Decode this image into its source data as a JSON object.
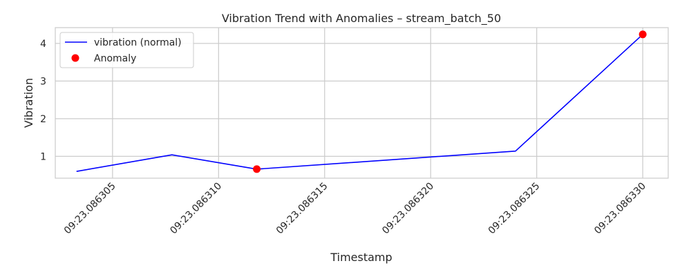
{
  "chart_data": {
    "type": "line",
    "title": "Vibration Trend with Anomalies – stream_batch_50",
    "xlabel": "Timestamp",
    "ylabel": "Vibration",
    "x_unit": "seconds (displayed as MM:SS.ffffff)",
    "xlim": [
      23.0863023,
      23.0863312
    ],
    "ylim": [
      0.42,
      4.42
    ],
    "x_ticks": [
      23.086305,
      23.08631,
      23.086315,
      23.08632,
      23.086325,
      23.08633
    ],
    "x_tick_labels": [
      "09:23.086305",
      "09:23.086310",
      "09:23.086315",
      "09:23.086320",
      "09:23.086325",
      "09:23.086330"
    ],
    "y_ticks": [
      1,
      2,
      3,
      4
    ],
    "y_tick_labels": [
      "1",
      "2",
      "3",
      "4"
    ],
    "grid": true,
    "legend_position": "top-left",
    "series": [
      {
        "name": "vibration (normal)",
        "kind": "line",
        "color": "#0000ff",
        "x": [
          23.0863033,
          23.0863078,
          23.0863118,
          23.086324,
          23.08633
        ],
        "y": [
          0.6,
          1.04,
          0.66,
          1.14,
          4.24
        ]
      },
      {
        "name": "Anomaly",
        "kind": "scatter",
        "color": "#ff0000",
        "x": [
          23.0863118,
          23.08633
        ],
        "y": [
          0.66,
          4.24
        ]
      }
    ]
  }
}
